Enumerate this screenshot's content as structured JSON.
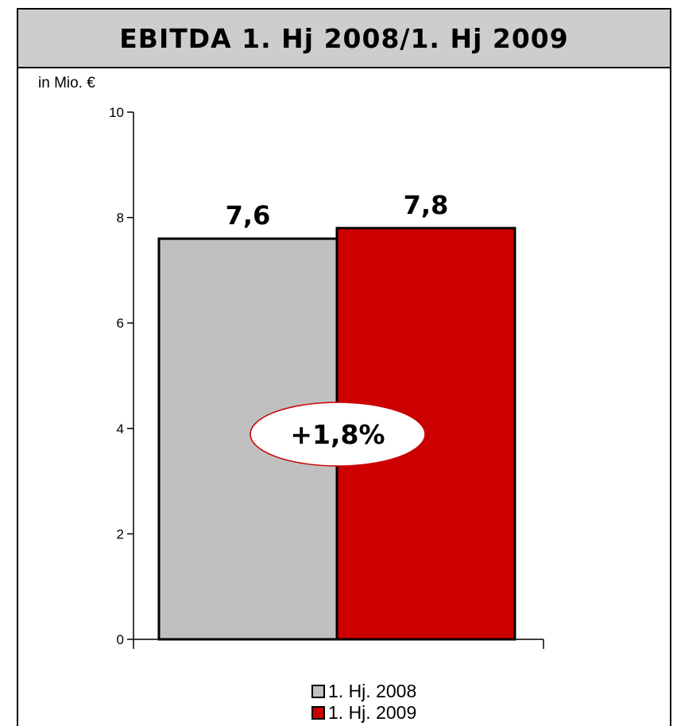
{
  "title": "EBITDA 1. Hj 2008/1. Hj 2009",
  "unit_label": "in Mio. €",
  "callout": "+1,8%",
  "colors": {
    "bar_2008": "#c0c0c0",
    "bar_2009": "#cc0000",
    "title_bg": "#cdcdcd",
    "callout_border": "#cc0000"
  },
  "chart_data": {
    "type": "bar",
    "categories": [
      ""
    ],
    "series": [
      {
        "name": "1. Hj. 2008",
        "values": [
          7.6
        ],
        "label": "7,6",
        "color": "#c0c0c0"
      },
      {
        "name": "1. Hj. 2009",
        "values": [
          7.8
        ],
        "label": "7,8",
        "color": "#cc0000"
      }
    ],
    "ylim": [
      0,
      10
    ],
    "yticks": [
      "0",
      "2",
      "4",
      "6",
      "8",
      "10"
    ],
    "ylabel": "in Mio. €",
    "grid": false,
    "legend_position": "bottom"
  }
}
